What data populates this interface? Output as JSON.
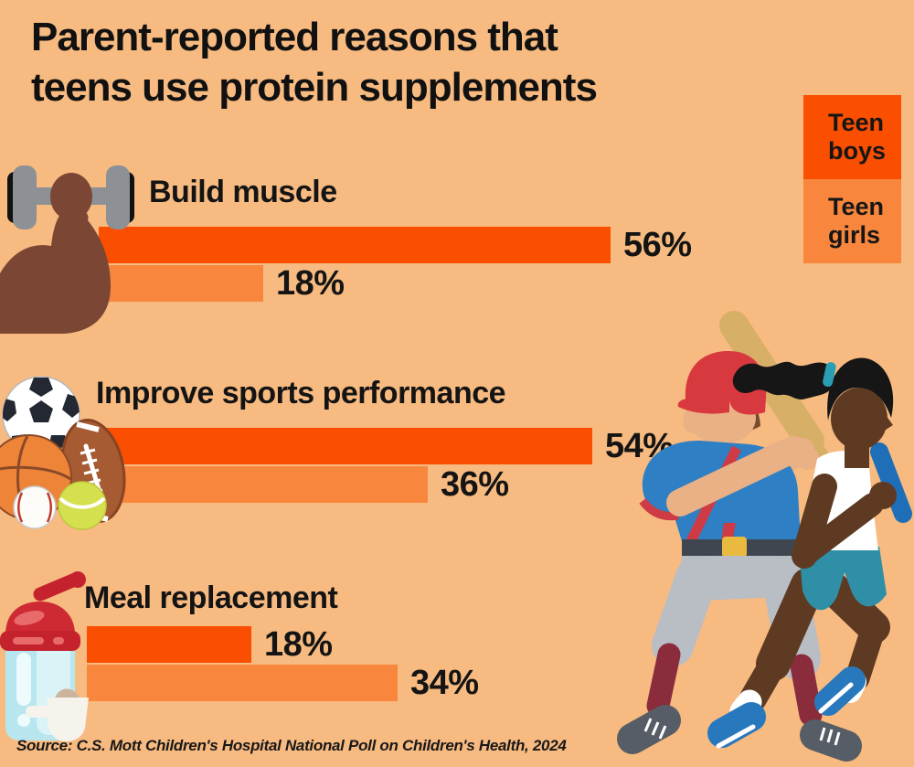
{
  "title": "Parent-reported reasons that teens use protein supplements",
  "title_lines": [
    "Parent-reported reasons that",
    "teens use protein supplements"
  ],
  "legend": {
    "boys": "Teen boys",
    "girls": "Teen girls"
  },
  "source": "Source: C.S. Mott Children's Hospital National Poll on Children's Health, 2024",
  "colors": {
    "background": "#F7BA80",
    "boys": "#FA4E00",
    "girls": "#F8863D",
    "text": "#141414"
  },
  "rows": [
    {
      "label": "Build muscle",
      "icon": "dumbbell-arm-icon",
      "boys": {
        "value": 56,
        "label": "56%"
      },
      "girls": {
        "value": 18,
        "label": "18%"
      }
    },
    {
      "label": "Improve sports performance",
      "icon": "sports-balls-icon",
      "boys": {
        "value": 54,
        "label": "54%"
      },
      "girls": {
        "value": 36,
        "label": "36%"
      }
    },
    {
      "label": "Meal replacement",
      "icon": "shaker-bottle-icon",
      "boys": {
        "value": 18,
        "label": "18%"
      },
      "girls": {
        "value": 34,
        "label": "34%"
      }
    }
  ],
  "chart_data": {
    "type": "bar",
    "orientation": "horizontal",
    "title": "Parent-reported reasons that teens use protein supplements",
    "categories": [
      "Build muscle",
      "Improve sports performance",
      "Meal replacement"
    ],
    "series": [
      {
        "name": "Teen boys",
        "values": [
          56,
          54,
          18
        ],
        "color": "#FA4E00"
      },
      {
        "name": "Teen girls",
        "values": [
          18,
          36,
          34
        ],
        "color": "#F8863D"
      }
    ],
    "unit": "%",
    "xlim": [
      0,
      100
    ],
    "grid": false,
    "data_labels": true,
    "legend_position": "top-right",
    "source": "Source: C.S. Mott Children's Hospital National Poll on Children's Health, 2024"
  }
}
